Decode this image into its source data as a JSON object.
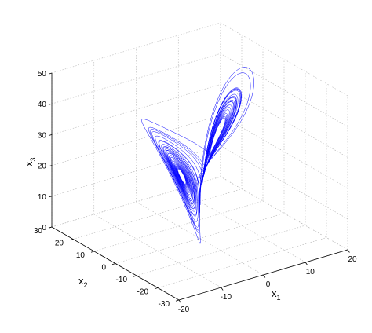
{
  "chart_data": {
    "type": "line",
    "projection": "3d",
    "title": "",
    "xlabel": "x",
    "xlabel_subscript": "1",
    "ylabel": "x",
    "ylabel_subscript": "2",
    "zlabel": "x",
    "zlabel_subscript": "3",
    "xlim": [
      -20,
      20
    ],
    "ylim": [
      -30,
      30
    ],
    "zlim": [
      0,
      50
    ],
    "xticks": [
      -20,
      -10,
      0,
      10,
      20
    ],
    "yticks": [
      -30,
      -20,
      -10,
      0,
      10,
      20,
      30
    ],
    "zticks": [
      0,
      10,
      20,
      30,
      40,
      50
    ],
    "grid": true,
    "line_color": "#0000ff",
    "series": [
      {
        "attractor_wings": [
          {
            "center": [
              -8.5,
              -8.5,
              27
            ],
            "min_radius": 2.5,
            "max_radius": 9
          },
          {
            "center": [
              8.5,
              8.5,
              27
            ],
            "min_radius": 2.5,
            "max_radius": 12
          }
        ],
        "z_range": [
          0,
          48
        ]
      }
    ]
  }
}
